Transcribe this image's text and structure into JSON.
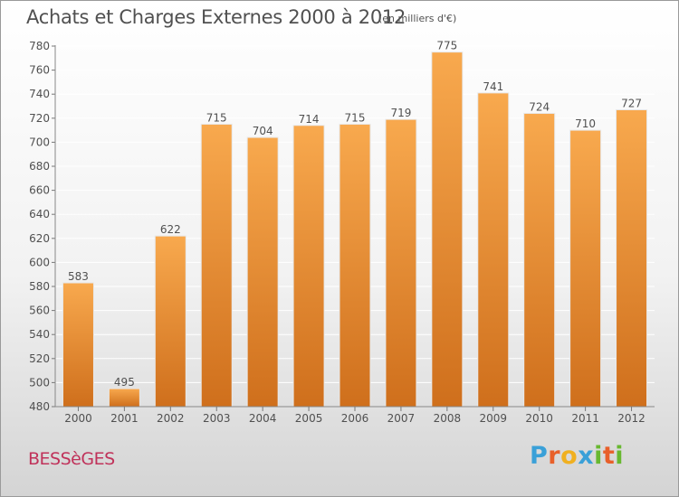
{
  "title": "Achats et Charges Externes 2000 à 2012",
  "subtitle": "(en milliers d'€)",
  "commune": "BESSèGES",
  "brand": {
    "letters": [
      "P",
      "r",
      "o",
      "x",
      "i",
      "t",
      "i"
    ],
    "colors": [
      "#3aa0d8",
      "#e8602a",
      "#f0b020",
      "#3aa0d8",
      "#68b830",
      "#e8602a",
      "#68b830"
    ]
  },
  "colors": {
    "bar_light": "#f8a94e",
    "bar_dark": "#cf6f1c",
    "text": "#505050",
    "grid": "#ffffff"
  },
  "chart_data": {
    "type": "bar",
    "categories": [
      "2000",
      "2001",
      "2002",
      "2003",
      "2004",
      "2005",
      "2006",
      "2007",
      "2008",
      "2009",
      "2010",
      "2011",
      "2012"
    ],
    "values": [
      583,
      495,
      622,
      715,
      704,
      714,
      715,
      719,
      775,
      741,
      724,
      710,
      727
    ],
    "ylim": [
      480,
      780
    ],
    "yticks": [
      480,
      500,
      520,
      540,
      560,
      580,
      600,
      620,
      640,
      660,
      680,
      700,
      720,
      740,
      760,
      780
    ],
    "grid": true,
    "data_labels": true
  }
}
